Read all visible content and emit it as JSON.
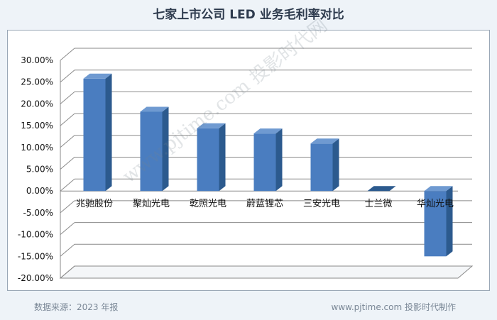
{
  "page": {
    "title": "七家上市公司 LED 业务毛利率对比",
    "source_note": "数据来源：2023 年报",
    "credit": "www.pjtime.com 投影时代制作",
    "watermark": "www.pjtime.com 投影时代网"
  },
  "colors": {
    "bar_front": "#4a7dc0",
    "bar_side": "#2c5a8e",
    "bar_top": "#6f9ad1",
    "grid": "#8a8a8a",
    "axis_text": "#111111",
    "background": "#eef3f8"
  },
  "chart_data": {
    "type": "bar",
    "title": "七家上市公司 LED 业务毛利率对比",
    "categories": [
      "兆驰股份",
      "聚灿光电",
      "乾照光电",
      "蔚蓝锂芯",
      "三安光电",
      "士兰微",
      "华灿光电"
    ],
    "values": [
      25.8,
      18.2,
      14.4,
      13.2,
      10.9,
      0.0,
      -15.0
    ],
    "ylim": [
      -20,
      30
    ],
    "y_ticks": [
      30,
      25,
      20,
      15,
      10,
      5,
      0,
      -5,
      -10,
      -15,
      -20
    ],
    "y_tick_labels": [
      "30.00%",
      "25.00%",
      "20.00%",
      "15.00%",
      "10.00%",
      "5.00%",
      "0.00%",
      "-5.00%",
      "-10.00%",
      "-15.00%",
      "-20.00%"
    ],
    "grid": true,
    "style": "3d-column"
  }
}
